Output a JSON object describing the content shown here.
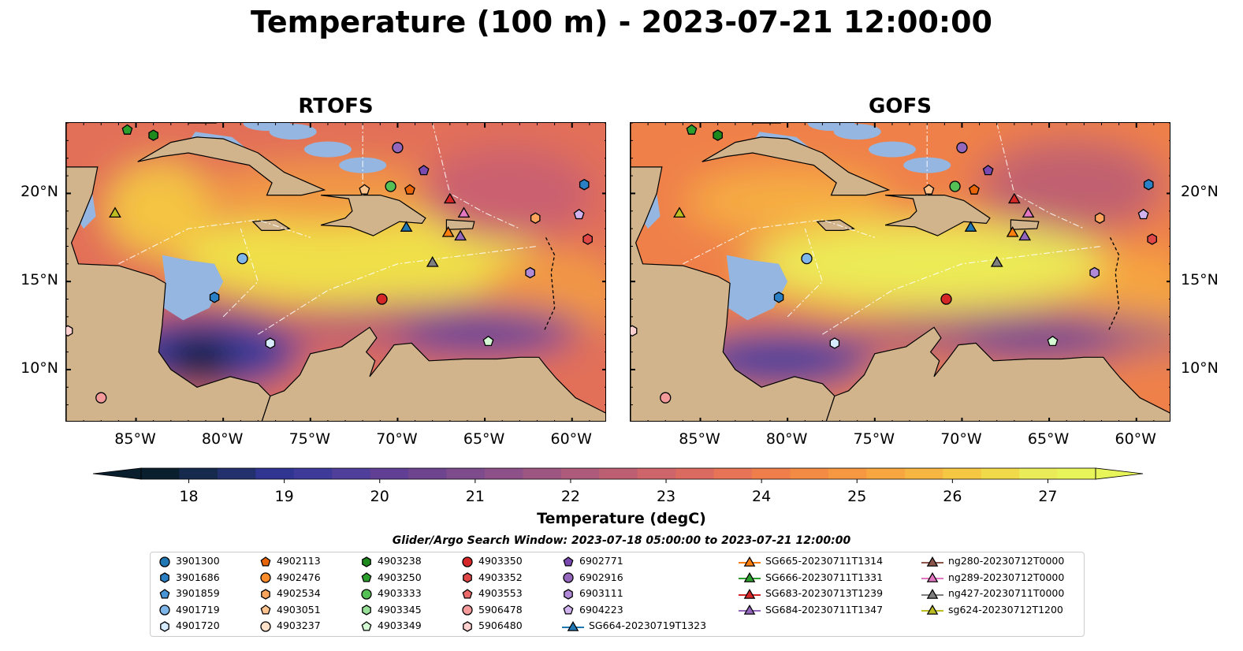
{
  "title": "Temperature (100 m) - 2023-07-21 12:00:00",
  "panels": [
    {
      "title": "RTOFS"
    },
    {
      "title": "GOFS"
    }
  ],
  "map": {
    "lon_range": [
      -89,
      -58
    ],
    "lat_range": [
      7,
      24
    ],
    "x_ticks": [
      "85°W",
      "80°W",
      "75°W",
      "70°W",
      "65°W",
      "60°W"
    ],
    "y_ticks": [
      "20°N",
      "15°N",
      "10°N"
    ],
    "land_color": "#d2b48c",
    "shelf_color": "#94b6e0"
  },
  "colorbar": {
    "label": "Temperature (degC)",
    "ticks": [
      "18",
      "19",
      "20",
      "21",
      "22",
      "23",
      "24",
      "25",
      "26",
      "27"
    ],
    "min": 17.5,
    "max": 27.5,
    "colors": [
      "#0a1f2e",
      "#152a4d",
      "#22306e",
      "#303592",
      "#3d3a9a",
      "#503f9a",
      "#613f94",
      "#6f448e",
      "#7e4b8c",
      "#8e5088",
      "#9d5682",
      "#ae5a7a",
      "#bd5f72",
      "#ce656a",
      "#db6b60",
      "#e77457",
      "#ef7e4a",
      "#f48b44",
      "#f69741",
      "#f7a640",
      "#f7b541",
      "#f5c743",
      "#f1da4a",
      "#eaeb58",
      "#e8f55a"
    ],
    "extend": "both"
  },
  "search_window": "Glider/Argo Search Window: 2023-07-18 05:00:00 to 2023-07-21 12:00:00",
  "legend": {
    "columns": [
      [
        {
          "label": "3901300",
          "marker": "circle",
          "color": "#1f77b4"
        },
        {
          "label": "3901686",
          "marker": "hexagon",
          "color": "#2b7fc4"
        },
        {
          "label": "3901859",
          "marker": "pentagon",
          "color": "#4a95d6"
        },
        {
          "label": "4901719",
          "marker": "circle",
          "color": "#7fb6ea"
        },
        {
          "label": "4901720",
          "marker": "hexagon",
          "color": "#d7ebff"
        }
      ],
      [
        {
          "label": "4902113",
          "marker": "pentagon",
          "color": "#e8650a"
        },
        {
          "label": "4902476",
          "marker": "circle",
          "color": "#ff8c2a"
        },
        {
          "label": "4902534",
          "marker": "hexagon",
          "color": "#ffa45c"
        },
        {
          "label": "4903051",
          "marker": "pentagon",
          "color": "#ffc38e"
        },
        {
          "label": "4903237",
          "marker": "circle",
          "color": "#ffe0c8"
        }
      ],
      [
        {
          "label": "4903238",
          "marker": "hexagon",
          "color": "#1e8a1e"
        },
        {
          "label": "4903250",
          "marker": "pentagon",
          "color": "#2ca02c"
        },
        {
          "label": "4903333",
          "marker": "circle",
          "color": "#55c055"
        },
        {
          "label": "4903345",
          "marker": "hexagon",
          "color": "#98e098"
        },
        {
          "label": "4903349",
          "marker": "pentagon",
          "color": "#d4fad4"
        }
      ],
      [
        {
          "label": "4903350",
          "marker": "circle",
          "color": "#d62728"
        },
        {
          "label": "4903352",
          "marker": "hexagon",
          "color": "#e04848"
        },
        {
          "label": "4903553",
          "marker": "pentagon",
          "color": "#ea6a6a"
        },
        {
          "label": "5906478",
          "marker": "circle",
          "color": "#f59a9a"
        },
        {
          "label": "5906480",
          "marker": "hexagon",
          "color": "#ffd0d0"
        }
      ],
      [
        {
          "label": "6902771",
          "marker": "pentagon",
          "color": "#7a4ab0"
        },
        {
          "label": "6902916",
          "marker": "circle",
          "color": "#9467bd"
        },
        {
          "label": "6903111",
          "marker": "hexagon",
          "color": "#b08ad6"
        },
        {
          "label": "6904223",
          "marker": "pentagon",
          "color": "#d0b2ee"
        },
        {
          "label": "SG664-20230719T1323",
          "marker": "triangle-line",
          "color": "#1f77b4"
        }
      ],
      [
        {
          "label": "SG665-20230711T1314",
          "marker": "triangle-line",
          "color": "#ff7f0e"
        },
        {
          "label": "SG666-20230711T1331",
          "marker": "triangle-line",
          "color": "#2ca02c"
        },
        {
          "label": "SG683-20230713T1239",
          "marker": "triangle-line",
          "color": "#d62728"
        },
        {
          "label": "SG684-20230711T1347",
          "marker": "triangle-line",
          "color": "#9467bd"
        }
      ],
      [
        {
          "label": "ng280-20230712T0000",
          "marker": "triangle-line",
          "color": "#8c564b"
        },
        {
          "label": "ng289-20230712T0000",
          "marker": "triangle-line",
          "color": "#e377c2"
        },
        {
          "label": "ng427-20230711T0000",
          "marker": "triangle-line",
          "color": "#7f7f7f"
        },
        {
          "label": "sg624-20230712T1200",
          "marker": "triangle-line",
          "color": "#bcbd22"
        }
      ]
    ]
  },
  "markers": [
    {
      "lon": -84.0,
      "lat": 23.3,
      "marker": "hexagon",
      "color": "#1e8a1e"
    },
    {
      "lon": -85.5,
      "lat": 23.6,
      "marker": "pentagon",
      "color": "#2ca02c"
    },
    {
      "lon": -70.0,
      "lat": 22.6,
      "marker": "circle",
      "color": "#9467bd"
    },
    {
      "lon": -68.5,
      "lat": 21.3,
      "marker": "pentagon",
      "color": "#7a4ab0"
    },
    {
      "lon": -69.3,
      "lat": 20.2,
      "marker": "pentagon",
      "color": "#e8650a"
    },
    {
      "lon": -70.4,
      "lat": 20.4,
      "marker": "circle",
      "color": "#55c055"
    },
    {
      "lon": -71.9,
      "lat": 20.2,
      "marker": "pentagon",
      "color": "#ffc38e"
    },
    {
      "lon": -59.3,
      "lat": 20.5,
      "marker": "hexagon",
      "color": "#2b7fc4"
    },
    {
      "lon": -59.6,
      "lat": 18.8,
      "marker": "pentagon",
      "color": "#d0b2ee"
    },
    {
      "lon": -59.1,
      "lat": 17.4,
      "marker": "hexagon",
      "color": "#e04848"
    },
    {
      "lon": -62.1,
      "lat": 18.6,
      "marker": "hexagon",
      "color": "#ffa45c"
    },
    {
      "lon": -86.2,
      "lat": 18.9,
      "marker": "triangle",
      "color": "#bcbd22"
    },
    {
      "lon": -67.0,
      "lat": 19.7,
      "marker": "triangle",
      "color": "#d62728"
    },
    {
      "lon": -66.2,
      "lat": 18.9,
      "marker": "triangle",
      "color": "#e377c2"
    },
    {
      "lon": -69.5,
      "lat": 18.1,
      "marker": "triangle",
      "color": "#1f77b4"
    },
    {
      "lon": -67.1,
      "lat": 17.8,
      "marker": "triangle",
      "color": "#ff7f0e"
    },
    {
      "lon": -66.4,
      "lat": 17.6,
      "marker": "triangle",
      "color": "#9467bd"
    },
    {
      "lon": -68.0,
      "lat": 16.1,
      "marker": "triangle",
      "color": "#7f7f7f"
    },
    {
      "lon": -78.9,
      "lat": 16.3,
      "marker": "circle",
      "color": "#7fb6ea"
    },
    {
      "lon": -80.5,
      "lat": 14.1,
      "marker": "hexagon",
      "color": "#2b7fc4"
    },
    {
      "lon": -70.9,
      "lat": 14.0,
      "marker": "circle",
      "color": "#d62728"
    },
    {
      "lon": -62.4,
      "lat": 15.5,
      "marker": "hexagon",
      "color": "#b08ad6"
    },
    {
      "lon": -77.3,
      "lat": 11.5,
      "marker": "hexagon",
      "color": "#d7ebff"
    },
    {
      "lon": -64.8,
      "lat": 11.6,
      "marker": "pentagon",
      "color": "#d4fad4"
    },
    {
      "lon": -88.9,
      "lat": 12.2,
      "marker": "hexagon",
      "color": "#ffd0d0"
    },
    {
      "lon": -87.0,
      "lat": 8.4,
      "marker": "circle",
      "color": "#f59a9a"
    }
  ]
}
